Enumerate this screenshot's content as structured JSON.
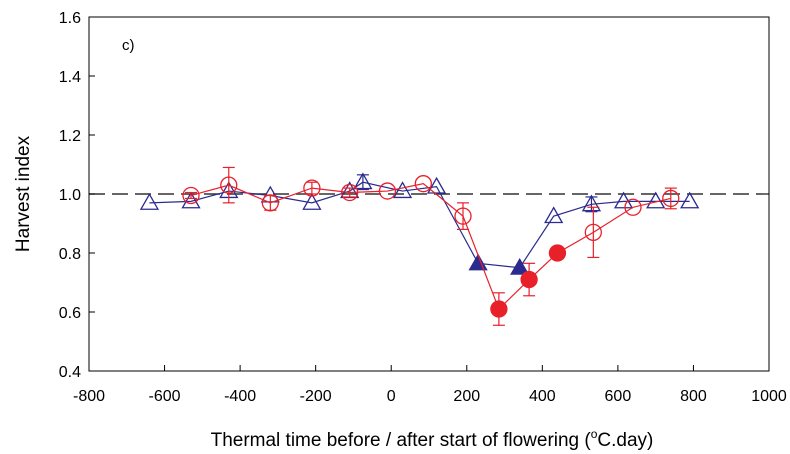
{
  "chart_data": {
    "type": "scatter",
    "panel_label": "c)",
    "xlabel": "Thermal time before / after start of flowering (",
    "xlabel_sup": "o",
    "xlabel_end": "C.day)",
    "ylabel": "Harvest index",
    "xlim": [
      -800,
      1000
    ],
    "ylim": [
      0.4,
      1.6
    ],
    "xticks": [
      "-800",
      "-600",
      "-400",
      "-200",
      "0",
      "200",
      "400",
      "600",
      "800",
      "1000"
    ],
    "xtick_values": [
      -800,
      -600,
      -400,
      -200,
      0,
      200,
      400,
      600,
      800,
      1000
    ],
    "yticks": [
      "0.4",
      "0.6",
      "0.8",
      "1.0",
      "1.2",
      "1.4",
      "1.6"
    ],
    "ytick_values": [
      0.4,
      0.6,
      0.8,
      1.0,
      1.2,
      1.4,
      1.6
    ],
    "reference_line": {
      "y": 1.0,
      "style": "dashed"
    },
    "grid": false,
    "series": [
      {
        "marker": "triangle",
        "color": "#2b2b8f",
        "points": [
          {
            "x": -640,
            "y": 0.97,
            "filled": false
          },
          {
            "x": -530,
            "y": 0.975,
            "filled": false
          },
          {
            "x": -430,
            "y": 1.01,
            "filled": false
          },
          {
            "x": -320,
            "y": 0.995,
            "filled": false
          },
          {
            "x": -210,
            "y": 0.97,
            "filled": false
          },
          {
            "x": -110,
            "y": 1.01,
            "filled": false
          },
          {
            "x": -75,
            "y": 1.04,
            "err": 0.025,
            "filled": false
          },
          {
            "x": 30,
            "y": 1.01,
            "filled": false
          },
          {
            "x": 120,
            "y": 1.025,
            "filled": false
          },
          {
            "x": 230,
            "y": 0.765,
            "filled": true
          },
          {
            "x": 340,
            "y": 0.75,
            "filled": true
          },
          {
            "x": 430,
            "y": 0.925,
            "filled": false
          },
          {
            "x": 530,
            "y": 0.965,
            "err": 0.025,
            "filled": false
          },
          {
            "x": 615,
            "y": 0.975,
            "filled": false
          },
          {
            "x": 700,
            "y": 0.975,
            "filled": false
          },
          {
            "x": 790,
            "y": 0.975,
            "filled": false
          }
        ]
      },
      {
        "marker": "circle",
        "color": "#e8202a",
        "points": [
          {
            "x": -530,
            "y": 0.995,
            "err": 0.01,
            "filled": false
          },
          {
            "x": -430,
            "y": 1.03,
            "err": 0.06,
            "filled": false
          },
          {
            "x": -320,
            "y": 0.97,
            "err": 0.025,
            "filled": false
          },
          {
            "x": -210,
            "y": 1.02,
            "err": 0.02,
            "filled": false
          },
          {
            "x": -110,
            "y": 1.005,
            "err": 0.015,
            "filled": false
          },
          {
            "x": -10,
            "y": 1.01,
            "filled": false
          },
          {
            "x": 85,
            "y": 1.035,
            "filled": false
          },
          {
            "x": 190,
            "y": 0.925,
            "err": 0.045,
            "filled": false
          },
          {
            "x": 285,
            "y": 0.61,
            "err": 0.055,
            "filled": true
          },
          {
            "x": 365,
            "y": 0.71,
            "err": 0.055,
            "filled": true
          },
          {
            "x": 440,
            "y": 0.8,
            "err": 0.02,
            "filled": true
          },
          {
            "x": 535,
            "y": 0.87,
            "err": 0.085,
            "filled": false
          },
          {
            "x": 640,
            "y": 0.955,
            "filled": false
          },
          {
            "x": 740,
            "y": 0.985,
            "err": 0.035,
            "filled": false
          }
        ]
      }
    ]
  }
}
